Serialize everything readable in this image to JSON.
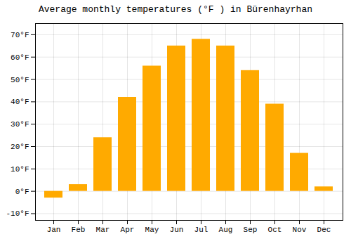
{
  "chart_data": {
    "type": "bar",
    "title": "Average monthly temperatures (°F ) in Bürenhayrhan",
    "categories": [
      "Jan",
      "Feb",
      "Mar",
      "Apr",
      "May",
      "Jun",
      "Jul",
      "Aug",
      "Sep",
      "Oct",
      "Nov",
      "Dec"
    ],
    "values": [
      -3,
      3,
      24,
      42,
      56,
      65,
      68,
      65,
      54,
      39,
      17,
      2
    ],
    "color": "#FFAA00",
    "ylim": [
      -13,
      75
    ],
    "yticks": [
      {
        "value": -10,
        "label": "-10°F"
      },
      {
        "value": 0,
        "label": "0°F"
      },
      {
        "value": 10,
        "label": "10°F"
      },
      {
        "value": 20,
        "label": "20°F"
      },
      {
        "value": 30,
        "label": "30°F"
      },
      {
        "value": 40,
        "label": "40°F"
      },
      {
        "value": 50,
        "label": "50°F"
      },
      {
        "value": 60,
        "label": "60°F"
      },
      {
        "value": 70,
        "label": "70°F"
      }
    ],
    "grid": true
  }
}
